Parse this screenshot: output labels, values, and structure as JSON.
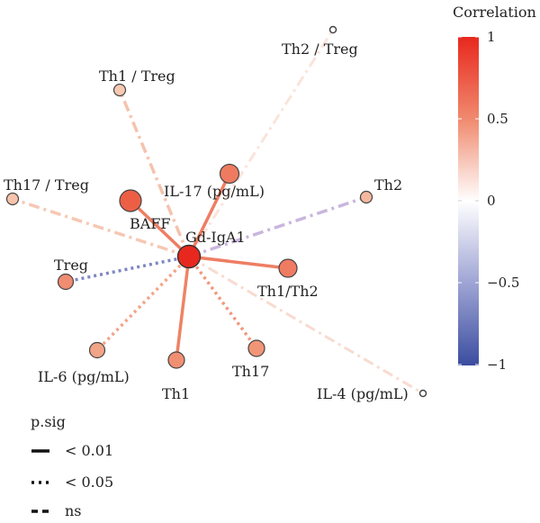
{
  "network": {
    "center": {
      "id": "Gd-IgA1",
      "label": "Gd-IgA1",
      "color": "#e8281e"
    },
    "nodes": [
      {
        "id": "il17",
        "label": "IL-17 (pg/mL)",
        "color": "#ee7b60",
        "r": 0.42,
        "sig": "p<0.01"
      },
      {
        "id": "baff",
        "label": "BAFF",
        "color": "#ec5f45",
        "r": 0.62,
        "sig": "p<0.01"
      },
      {
        "id": "th1th2",
        "label": "Th1/Th2",
        "color": "#ef7b62",
        "r": 0.45,
        "sig": "p<0.01"
      },
      {
        "id": "th1",
        "label": "Th1",
        "color": "#f18f73",
        "r": 0.38,
        "sig": "p<0.01"
      },
      {
        "id": "th17",
        "label": "Th17",
        "color": "#f19577",
        "r": 0.34,
        "sig": "p<0.05"
      },
      {
        "id": "il6",
        "label": "IL-6 (pg/mL)",
        "color": "#f1a486",
        "r": 0.3,
        "sig": "p<0.05"
      },
      {
        "id": "treg",
        "label": "Treg",
        "color": "#ef8c71",
        "r": -0.5,
        "sig": "p<0.05"
      },
      {
        "id": "th2",
        "label": "Th2",
        "color": "#f5b89e",
        "r": -0.25,
        "sig": "ns"
      },
      {
        "id": "th17treg",
        "label": "Th17 / Treg",
        "color": "#f7c3ab",
        "r": 0.2,
        "sig": "ns"
      },
      {
        "id": "th1treg",
        "label": "Th1 / Treg",
        "color": "#f7c8b2",
        "r": 0.22,
        "sig": "ns"
      },
      {
        "id": "th2treg",
        "label": "Th2 / Treg",
        "color": "#ffffff",
        "r": 0.1,
        "sig": "ns"
      },
      {
        "id": "il4",
        "label": "IL-4 (pg/mL)",
        "color": "#ffffff",
        "r": 0.15,
        "sig": "ns"
      }
    ]
  },
  "colorbar": {
    "title": "Correlation",
    "ticks": [
      "1",
      "0.5",
      "0",
      "−0.5",
      "−1"
    ],
    "colors": {
      "max": "#e8281e",
      "mid": "#ffffff",
      "min": "#3b4da0"
    }
  },
  "legend": {
    "title": "p.sig",
    "items": [
      {
        "style": "solid",
        "label": "< 0.01"
      },
      {
        "style": "dotted",
        "label": "< 0.05"
      },
      {
        "style": "dashed",
        "label": "ns"
      }
    ]
  }
}
